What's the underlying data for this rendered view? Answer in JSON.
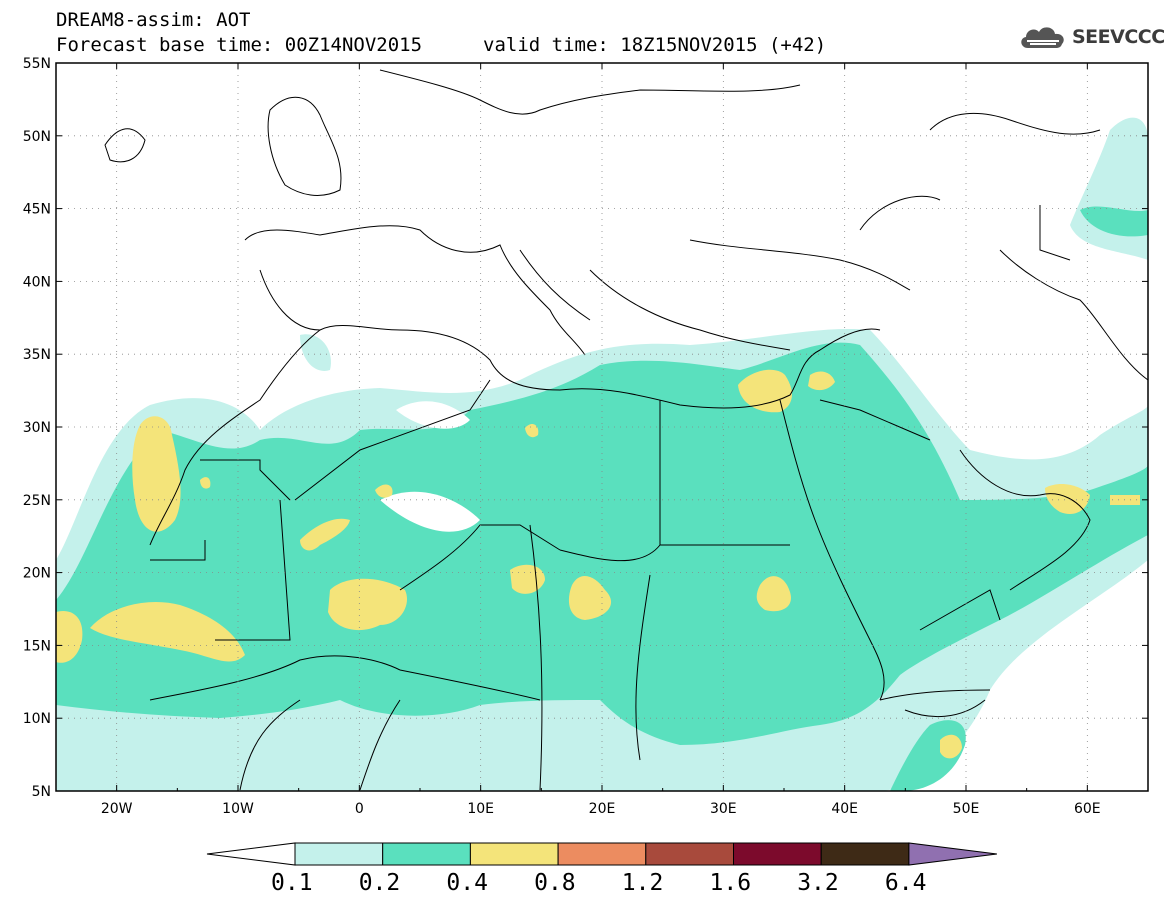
{
  "header": {
    "line1": "DREAM8-assim: AOT",
    "base_time": "Forecast base time: 00Z14NOV2015",
    "valid_time": "valid time: 18Z15NOV2015 (+42)"
  },
  "logo": {
    "text": "SEEVCCC",
    "icon": "cloud-icon"
  },
  "map": {
    "lon_range": [
      -25,
      65
    ],
    "lat_range": [
      5,
      55
    ],
    "lat_labels": [
      "55N",
      "50N",
      "45N",
      "40N",
      "35N",
      "30N",
      "25N",
      "20N",
      "15N",
      "10N",
      "5N"
    ],
    "lon_labels": [
      "20W",
      "10W",
      "0",
      "10E",
      "20E",
      "30E",
      "40E",
      "50E",
      "60E"
    ]
  },
  "colorbar": {
    "thresholds": [
      "0.1",
      "0.2",
      "0.4",
      "0.8",
      "1.2",
      "1.6",
      "3.2",
      "6.4"
    ],
    "colors": [
      "#ffffff",
      "#c4f1eb",
      "#5ae0be",
      "#f4e47a",
      "#ec8c60",
      "#a84a3c",
      "#7c0a2c",
      "#3e2a16",
      "#9070b0"
    ]
  }
}
